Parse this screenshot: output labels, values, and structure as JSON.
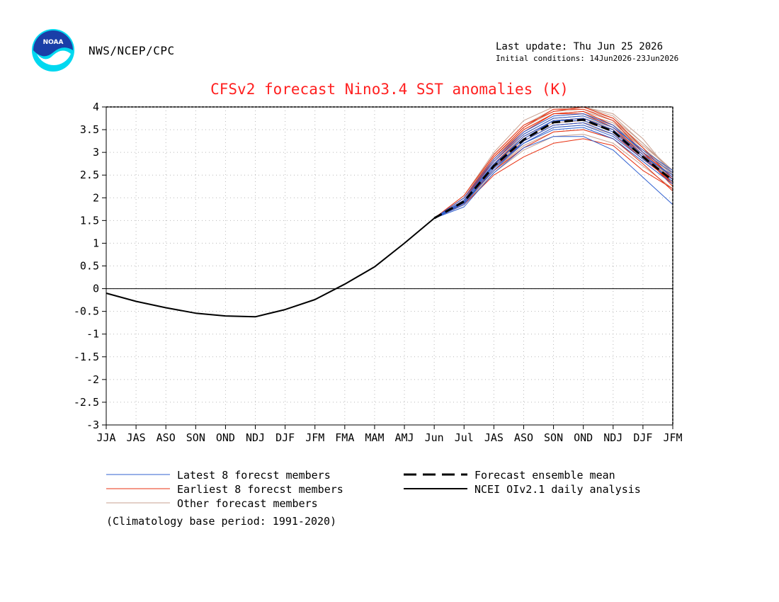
{
  "header": {
    "agency": "NWS/NCEP/CPC",
    "last_update": "Last update: Thu Jun 25 2026",
    "initial_conditions": "Initial conditions: 14Jun2026-23Jun2026",
    "logo_text": "NOAA"
  },
  "colors": {
    "title": "#ff2020",
    "latest": "#3060d0",
    "earliest": "#e83010",
    "other": "#c8a090",
    "mean": "#000000",
    "analysis": "#000000",
    "logo_blue": "#1a3fa8",
    "logo_cyan": "#00d8f0"
  },
  "legend": {
    "latest": "Latest 8 forecst members",
    "earliest": "Earliest 8 forecst members",
    "other": "Other forecast members",
    "mean": "Forecast ensemble mean",
    "analysis": "NCEI OIv2.1 daily analysis",
    "climatology": "(Climatology base period: 1991-2020)"
  },
  "chart_data": {
    "type": "line",
    "title": "CFSv2 forecast Nino3.4 SST anomalies (K)",
    "categories": [
      "JJA",
      "JAS",
      "ASO",
      "SON",
      "OND",
      "NDJ",
      "DJF",
      "JFM",
      "FMA",
      "MAM",
      "AMJ",
      "Jun",
      "Jul",
      "JAS",
      "ASO",
      "SON",
      "OND",
      "NDJ",
      "DJF",
      "JFM"
    ],
    "ylim": [
      -3,
      4
    ],
    "yticks": [
      -3,
      -2.5,
      -2,
      -1.5,
      -1,
      -0.5,
      0,
      0.5,
      1,
      1.5,
      2,
      2.5,
      3,
      3.5,
      4
    ],
    "ytick_labels": [
      "-3",
      "-2.5",
      "-2",
      "-1.5",
      "-1",
      "-0.5",
      "0",
      "0.5",
      "1",
      "1.5",
      "2",
      "2.5",
      "3",
      "3.5",
      "4"
    ],
    "grid": true,
    "zero_line": true,
    "analysis": {
      "name": "NCEI OIv2.1 daily analysis",
      "values": [
        -0.1,
        -0.28,
        -0.42,
        -0.54,
        -0.6,
        -0.62,
        -0.46,
        -0.24,
        0.1,
        0.48,
        1.0,
        1.55
      ]
    },
    "ensemble_mean": {
      "name": "Forecast ensemble mean",
      "start_index": 11,
      "values": [
        1.55,
        1.92,
        2.7,
        3.28,
        3.66,
        3.72,
        3.46,
        2.9,
        2.38
      ]
    },
    "members": {
      "start_index": 11,
      "latest": [
        [
          1.55,
          1.8,
          2.55,
          3.1,
          3.35,
          3.35,
          3.05,
          2.45,
          1.85
        ],
        [
          1.55,
          1.85,
          2.65,
          3.2,
          3.55,
          3.6,
          3.35,
          2.85,
          2.4
        ],
        [
          1.55,
          1.95,
          2.75,
          3.3,
          3.7,
          3.75,
          3.5,
          2.95,
          2.45
        ],
        [
          1.55,
          2.0,
          2.85,
          3.45,
          3.8,
          3.85,
          3.6,
          3.0,
          2.55
        ],
        [
          1.55,
          1.9,
          2.6,
          3.25,
          3.6,
          3.65,
          3.4,
          2.9,
          2.35
        ],
        [
          1.55,
          1.95,
          2.8,
          3.4,
          3.75,
          3.8,
          3.55,
          3.05,
          2.6
        ],
        [
          1.55,
          1.88,
          2.7,
          3.2,
          3.5,
          3.55,
          3.3,
          2.8,
          2.3
        ],
        [
          1.55,
          1.92,
          2.72,
          3.35,
          3.7,
          3.7,
          3.45,
          2.9,
          2.5
        ]
      ],
      "earliest": [
        [
          1.55,
          2.0,
          2.9,
          3.55,
          3.95,
          3.95,
          3.7,
          3.0,
          2.3
        ],
        [
          1.55,
          1.85,
          2.5,
          2.9,
          3.2,
          3.3,
          3.15,
          2.6,
          2.2
        ],
        [
          1.55,
          2.05,
          2.95,
          3.6,
          3.9,
          4.0,
          3.75,
          3.1,
          2.4
        ],
        [
          1.55,
          1.9,
          2.6,
          3.1,
          3.45,
          3.5,
          3.3,
          2.75,
          2.15
        ],
        [
          1.55,
          1.95,
          2.75,
          3.35,
          3.7,
          3.75,
          3.5,
          2.9,
          2.3
        ],
        [
          1.55,
          2.0,
          2.8,
          3.45,
          3.85,
          3.9,
          3.6,
          3.0,
          2.45
        ],
        [
          1.55,
          1.88,
          2.65,
          3.25,
          3.6,
          3.65,
          3.4,
          2.85,
          2.35
        ],
        [
          1.55,
          1.95,
          2.85,
          3.5,
          3.85,
          3.85,
          3.55,
          2.95,
          2.25
        ]
      ],
      "other": [
        [
          1.55,
          2.05,
          3.0,
          3.7,
          4.0,
          4.0,
          3.85,
          3.3,
          2.5
        ],
        [
          1.55,
          2.0,
          2.95,
          3.6,
          3.95,
          4.0,
          3.8,
          3.2,
          2.55
        ],
        [
          1.55,
          1.95,
          2.85,
          3.5,
          3.85,
          3.9,
          3.7,
          3.1,
          2.5
        ],
        [
          1.55,
          1.9,
          2.75,
          3.4,
          3.75,
          3.8,
          3.6,
          3.05,
          2.45
        ],
        [
          1.55,
          1.85,
          2.6,
          3.2,
          3.55,
          3.6,
          3.4,
          2.9,
          2.4
        ],
        [
          1.55,
          1.9,
          2.7,
          3.3,
          3.65,
          3.7,
          3.45,
          2.95,
          2.35
        ],
        [
          1.55,
          1.85,
          2.55,
          3.05,
          3.35,
          3.4,
          3.2,
          2.7,
          2.2
        ],
        [
          1.55,
          1.95,
          2.9,
          3.55,
          3.9,
          3.95,
          3.75,
          3.2,
          2.6
        ],
        [
          1.55,
          2.0,
          2.8,
          3.45,
          3.8,
          3.85,
          3.65,
          3.1,
          2.5
        ],
        [
          1.55,
          1.9,
          2.65,
          3.25,
          3.6,
          3.65,
          3.5,
          3.0,
          2.45
        ],
        [
          1.55,
          1.88,
          2.7,
          3.35,
          3.7,
          3.75,
          3.55,
          3.0,
          2.4
        ],
        [
          1.55,
          1.95,
          2.8,
          3.4,
          3.75,
          3.8,
          3.6,
          3.1,
          2.55
        ],
        [
          1.55,
          1.9,
          2.6,
          3.15,
          3.45,
          3.5,
          3.3,
          2.8,
          2.3
        ],
        [
          1.55,
          2.0,
          2.9,
          3.5,
          3.85,
          3.9,
          3.7,
          3.15,
          2.6
        ],
        [
          1.55,
          1.85,
          2.65,
          3.3,
          3.65,
          3.7,
          3.5,
          2.95,
          2.4
        ],
        [
          1.55,
          1.95,
          2.75,
          3.35,
          3.7,
          3.75,
          3.55,
          3.05,
          2.5
        ]
      ]
    }
  }
}
